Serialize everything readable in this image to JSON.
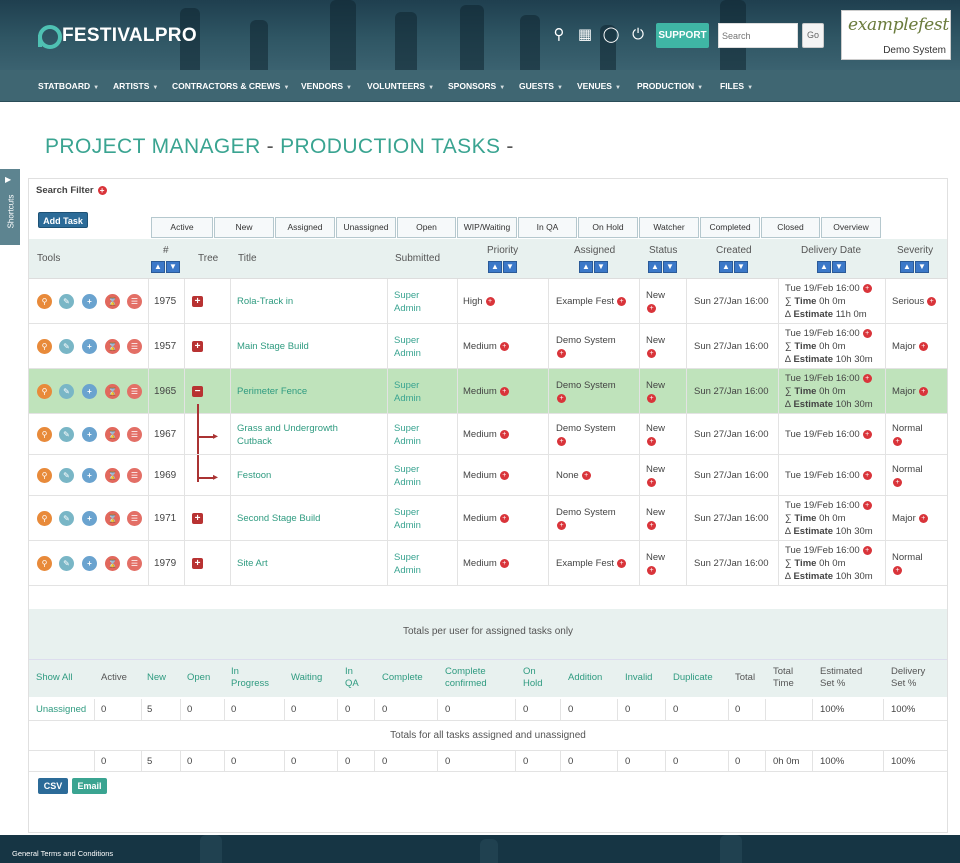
{
  "brand": {
    "name": "FESTIVALPRO"
  },
  "header": {
    "support_label": "SUPPORT",
    "search_placeholder": "Search",
    "go_label": "Go",
    "client_logo_text": "examplefest",
    "client_name": "Demo System"
  },
  "nav": [
    "STATBOARD",
    "ARTISTS",
    "CONTRACTORS & CREWS",
    "VENDORS",
    "VOLUNTEERS",
    "SPONSORS",
    "GUESTS",
    "VENUES",
    "PRODUCTION",
    "FILES"
  ],
  "page": {
    "title_a": "PROJECT MANAGER",
    "sep": "-",
    "title_b": "PRODUCTION TASKS",
    "sep2": "-"
  },
  "shortcuts_label": "Shortcuts",
  "search_filter_label": "Search Filter",
  "add_task_label": "Add Task",
  "tabs": [
    "Active",
    "New",
    "Assigned",
    "Unassigned",
    "Open",
    "WIP/Waiting",
    "In QA",
    "On Hold",
    "Watcher",
    "Completed",
    "Closed",
    "Overview"
  ],
  "columns": {
    "tools": "Tools",
    "num": "#",
    "tree": "Tree",
    "title": "Title",
    "submitted": "Submitted",
    "priority": "Priority",
    "assigned": "Assigned",
    "status": "Status",
    "created": "Created",
    "delivery": "Delivery Date",
    "severity": "Severity"
  },
  "tasks": [
    {
      "id": "1975",
      "tree": "+",
      "title": "Rola-Track in",
      "sub1": "Super",
      "sub2": "Admin",
      "priority": "High",
      "assigned": "Example Fest",
      "status": "New",
      "created": "Sun 27/Jan 16:00",
      "delivery": "Tue 19/Feb 16:00",
      "time": "0h 0m",
      "estimate": "11h 0m",
      "severity": "Serious"
    },
    {
      "id": "1957",
      "tree": "+",
      "title": "Main Stage Build",
      "sub1": "Super",
      "sub2": "Admin",
      "priority": "Medium",
      "assigned": "Demo System",
      "status": "New",
      "created": "Sun 27/Jan 16:00",
      "delivery": "Tue 19/Feb 16:00",
      "time": "0h 0m",
      "estimate": "10h 30m",
      "severity": "Major"
    },
    {
      "id": "1965",
      "tree": "−",
      "title": "Perimeter Fence",
      "sub1": "Super",
      "sub2": "Admin",
      "priority": "Medium",
      "assigned": "Demo System",
      "status": "New",
      "created": "Sun 27/Jan 16:00",
      "delivery": "Tue 19/Feb 16:00",
      "time": "0h 0m",
      "estimate": "10h 30m",
      "severity": "Major"
    },
    {
      "id": "1967",
      "tree": "",
      "title": "Grass and Undergrowth Cutback",
      "sub1": "Super",
      "sub2": "Admin",
      "priority": "Medium",
      "assigned": "Demo System",
      "status": "New",
      "created": "Sun 27/Jan 16:00",
      "delivery": "Tue 19/Feb 16:00",
      "time": "",
      "estimate": "",
      "severity": "Normal"
    },
    {
      "id": "1969",
      "tree": "",
      "title": "Festoon",
      "sub1": "Super",
      "sub2": "Admin",
      "priority": "Medium",
      "assigned": "None",
      "status": "New",
      "created": "Sun 27/Jan 16:00",
      "delivery": "Tue 19/Feb 16:00",
      "time": "",
      "estimate": "",
      "severity": "Normal"
    },
    {
      "id": "1971",
      "tree": "+",
      "title": "Second Stage Build",
      "sub1": "Super",
      "sub2": "Admin",
      "priority": "Medium",
      "assigned": "Demo System",
      "status": "New",
      "created": "Sun 27/Jan 16:00",
      "delivery": "Tue 19/Feb 16:00",
      "time": "0h 0m",
      "estimate": "10h 30m",
      "severity": "Major"
    },
    {
      "id": "1979",
      "tree": "+",
      "title": "Site Art",
      "sub1": "Super",
      "sub2": "Admin",
      "priority": "Medium",
      "assigned": "Example Fest",
      "status": "New",
      "created": "Sun 27/Jan 16:00",
      "delivery": "Tue 19/Feb 16:00",
      "time": "0h 0m",
      "estimate": "10h 30m",
      "severity": "Normal"
    }
  ],
  "labels": {
    "time": "Time",
    "estimate": "Estimate",
    "sum": "∑",
    "delta": "∆"
  },
  "totals_user_title": "Totals per user for assigned tasks only",
  "summary_headers": [
    "Show All",
    "Active",
    "New",
    "Open",
    "In Progress",
    "Waiting",
    "In QA",
    "Complete",
    "Complete confirmed",
    "On Hold",
    "Addition",
    "Invalid",
    "Duplicate",
    "Total",
    "Total Time",
    "Estimated Set %",
    "Delivery Set %"
  ],
  "unassigned_row": [
    "Unassigned",
    "0",
    "5",
    "0",
    "0",
    "0",
    "0",
    "0",
    "0",
    "0",
    "0",
    "0",
    "0",
    "0",
    "",
    "100%",
    "100%"
  ],
  "totals_all_title": "Totals for all tasks assigned and unassigned",
  "all_row": [
    "",
    "0",
    "5",
    "0",
    "0",
    "0",
    "0",
    "0",
    "0",
    "0",
    "0",
    "0",
    "0",
    "0",
    "0h 0m",
    "100%",
    "100%"
  ],
  "csv_label": "CSV",
  "email_label": "Email",
  "footer_text": "General Terms and Conditions"
}
